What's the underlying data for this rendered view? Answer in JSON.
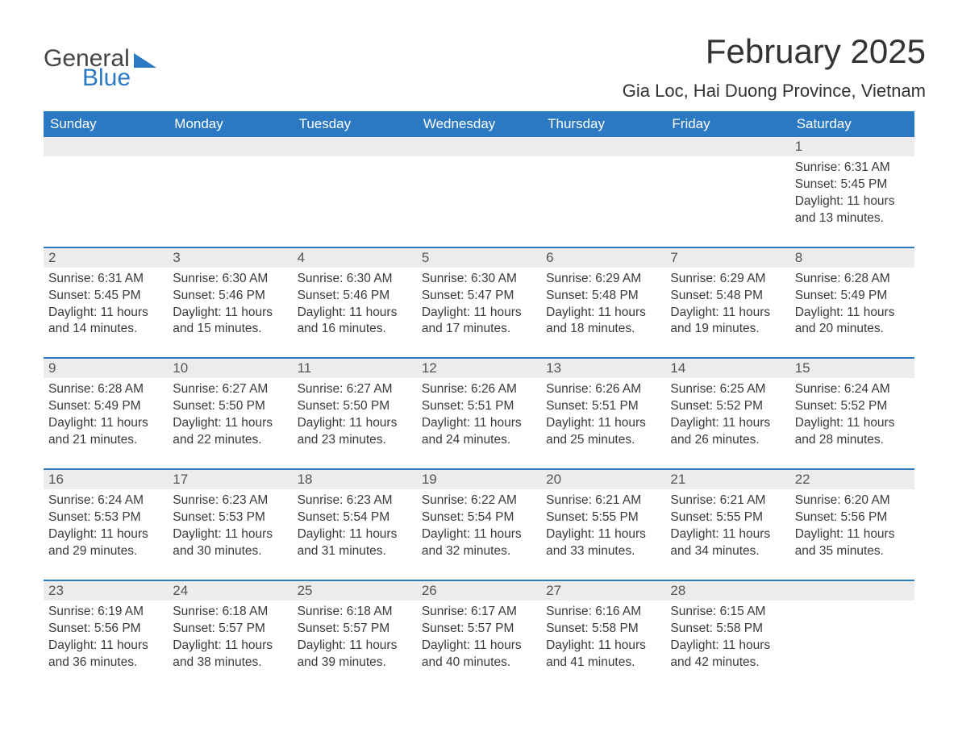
{
  "brand": {
    "word1": "General",
    "word2": "Blue"
  },
  "title": "February 2025",
  "location": "Gia Loc, Hai Duong Province, Vietnam",
  "colors": {
    "header_bg": "#2b79c2",
    "header_text": "#ffffff",
    "daynum_bg": "#ececec",
    "rule": "#2b79c2",
    "body_text": "#3a3a3a",
    "location_text": "#333333"
  },
  "fonts": {
    "title_size": 42,
    "location_size": 22,
    "header_size": 17,
    "body_size": 15.5
  },
  "days_of_week": [
    "Sunday",
    "Monday",
    "Tuesday",
    "Wednesday",
    "Thursday",
    "Friday",
    "Saturday"
  ],
  "weeks": [
    [
      null,
      null,
      null,
      null,
      null,
      null,
      {
        "n": "1",
        "sunrise": "Sunrise: 6:31 AM",
        "sunset": "Sunset: 5:45 PM",
        "daylight": "Daylight: 11 hours and 13 minutes."
      }
    ],
    [
      {
        "n": "2",
        "sunrise": "Sunrise: 6:31 AM",
        "sunset": "Sunset: 5:45 PM",
        "daylight": "Daylight: 11 hours and 14 minutes."
      },
      {
        "n": "3",
        "sunrise": "Sunrise: 6:30 AM",
        "sunset": "Sunset: 5:46 PM",
        "daylight": "Daylight: 11 hours and 15 minutes."
      },
      {
        "n": "4",
        "sunrise": "Sunrise: 6:30 AM",
        "sunset": "Sunset: 5:46 PM",
        "daylight": "Daylight: 11 hours and 16 minutes."
      },
      {
        "n": "5",
        "sunrise": "Sunrise: 6:30 AM",
        "sunset": "Sunset: 5:47 PM",
        "daylight": "Daylight: 11 hours and 17 minutes."
      },
      {
        "n": "6",
        "sunrise": "Sunrise: 6:29 AM",
        "sunset": "Sunset: 5:48 PM",
        "daylight": "Daylight: 11 hours and 18 minutes."
      },
      {
        "n": "7",
        "sunrise": "Sunrise: 6:29 AM",
        "sunset": "Sunset: 5:48 PM",
        "daylight": "Daylight: 11 hours and 19 minutes."
      },
      {
        "n": "8",
        "sunrise": "Sunrise: 6:28 AM",
        "sunset": "Sunset: 5:49 PM",
        "daylight": "Daylight: 11 hours and 20 minutes."
      }
    ],
    [
      {
        "n": "9",
        "sunrise": "Sunrise: 6:28 AM",
        "sunset": "Sunset: 5:49 PM",
        "daylight": "Daylight: 11 hours and 21 minutes."
      },
      {
        "n": "10",
        "sunrise": "Sunrise: 6:27 AM",
        "sunset": "Sunset: 5:50 PM",
        "daylight": "Daylight: 11 hours and 22 minutes."
      },
      {
        "n": "11",
        "sunrise": "Sunrise: 6:27 AM",
        "sunset": "Sunset: 5:50 PM",
        "daylight": "Daylight: 11 hours and 23 minutes."
      },
      {
        "n": "12",
        "sunrise": "Sunrise: 6:26 AM",
        "sunset": "Sunset: 5:51 PM",
        "daylight": "Daylight: 11 hours and 24 minutes."
      },
      {
        "n": "13",
        "sunrise": "Sunrise: 6:26 AM",
        "sunset": "Sunset: 5:51 PM",
        "daylight": "Daylight: 11 hours and 25 minutes."
      },
      {
        "n": "14",
        "sunrise": "Sunrise: 6:25 AM",
        "sunset": "Sunset: 5:52 PM",
        "daylight": "Daylight: 11 hours and 26 minutes."
      },
      {
        "n": "15",
        "sunrise": "Sunrise: 6:24 AM",
        "sunset": "Sunset: 5:52 PM",
        "daylight": "Daylight: 11 hours and 28 minutes."
      }
    ],
    [
      {
        "n": "16",
        "sunrise": "Sunrise: 6:24 AM",
        "sunset": "Sunset: 5:53 PM",
        "daylight": "Daylight: 11 hours and 29 minutes."
      },
      {
        "n": "17",
        "sunrise": "Sunrise: 6:23 AM",
        "sunset": "Sunset: 5:53 PM",
        "daylight": "Daylight: 11 hours and 30 minutes."
      },
      {
        "n": "18",
        "sunrise": "Sunrise: 6:23 AM",
        "sunset": "Sunset: 5:54 PM",
        "daylight": "Daylight: 11 hours and 31 minutes."
      },
      {
        "n": "19",
        "sunrise": "Sunrise: 6:22 AM",
        "sunset": "Sunset: 5:54 PM",
        "daylight": "Daylight: 11 hours and 32 minutes."
      },
      {
        "n": "20",
        "sunrise": "Sunrise: 6:21 AM",
        "sunset": "Sunset: 5:55 PM",
        "daylight": "Daylight: 11 hours and 33 minutes."
      },
      {
        "n": "21",
        "sunrise": "Sunrise: 6:21 AM",
        "sunset": "Sunset: 5:55 PM",
        "daylight": "Daylight: 11 hours and 34 minutes."
      },
      {
        "n": "22",
        "sunrise": "Sunrise: 6:20 AM",
        "sunset": "Sunset: 5:56 PM",
        "daylight": "Daylight: 11 hours and 35 minutes."
      }
    ],
    [
      {
        "n": "23",
        "sunrise": "Sunrise: 6:19 AM",
        "sunset": "Sunset: 5:56 PM",
        "daylight": "Daylight: 11 hours and 36 minutes."
      },
      {
        "n": "24",
        "sunrise": "Sunrise: 6:18 AM",
        "sunset": "Sunset: 5:57 PM",
        "daylight": "Daylight: 11 hours and 38 minutes."
      },
      {
        "n": "25",
        "sunrise": "Sunrise: 6:18 AM",
        "sunset": "Sunset: 5:57 PM",
        "daylight": "Daylight: 11 hours and 39 minutes."
      },
      {
        "n": "26",
        "sunrise": "Sunrise: 6:17 AM",
        "sunset": "Sunset: 5:57 PM",
        "daylight": "Daylight: 11 hours and 40 minutes."
      },
      {
        "n": "27",
        "sunrise": "Sunrise: 6:16 AM",
        "sunset": "Sunset: 5:58 PM",
        "daylight": "Daylight: 11 hours and 41 minutes."
      },
      {
        "n": "28",
        "sunrise": "Sunrise: 6:15 AM",
        "sunset": "Sunset: 5:58 PM",
        "daylight": "Daylight: 11 hours and 42 minutes."
      },
      null
    ]
  ]
}
